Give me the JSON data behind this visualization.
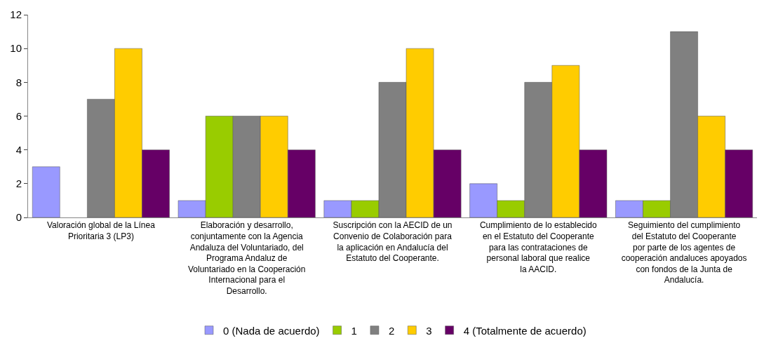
{
  "chart_data": {
    "type": "bar",
    "categories": [
      "Valoración global de la Línea Prioritaria 3 (LP3)",
      "Elaboración y desarrollo, conjuntamente con la Agencia Andaluza del Voluntariado, del Programa Andaluz de Voluntariado en la Cooperación Internacional para el Desarrollo.",
      "Suscripción con la AECID de un Convenio de Colaboración para la aplicación en Andalucía del Estatuto del Cooperante.",
      "Cumplimiento de lo establecido en el Estatuto del Cooperante para las contrataciones de personal laboral que realice la AACID.",
      "Seguimiento del cumplimiento del Estatuto del Cooperante por parte de los agentes de cooperación andaluces apoyados con fondos de la Junta de Andalucía."
    ],
    "series": [
      {
        "name": "0 (Nada de acuerdo)",
        "color": "#9999ff",
        "values": [
          3,
          1,
          1,
          2,
          1
        ]
      },
      {
        "name": "1",
        "color": "#99cc00",
        "values": [
          null,
          6,
          1,
          1,
          1
        ]
      },
      {
        "name": "2",
        "color": "#808080",
        "values": [
          7,
          6,
          8,
          8,
          11
        ]
      },
      {
        "name": "3",
        "color": "#ffcc00",
        "values": [
          10,
          6,
          10,
          9,
          6
        ]
      },
      {
        "name": "4 (Totalmente de acuerdo)",
        "color": "#660066",
        "values": [
          4,
          4,
          4,
          4,
          4
        ]
      }
    ],
    "ylim": [
      0,
      12
    ],
    "yticks": [
      0,
      2,
      4,
      6,
      8,
      10,
      12
    ],
    "legend": "bottom"
  }
}
